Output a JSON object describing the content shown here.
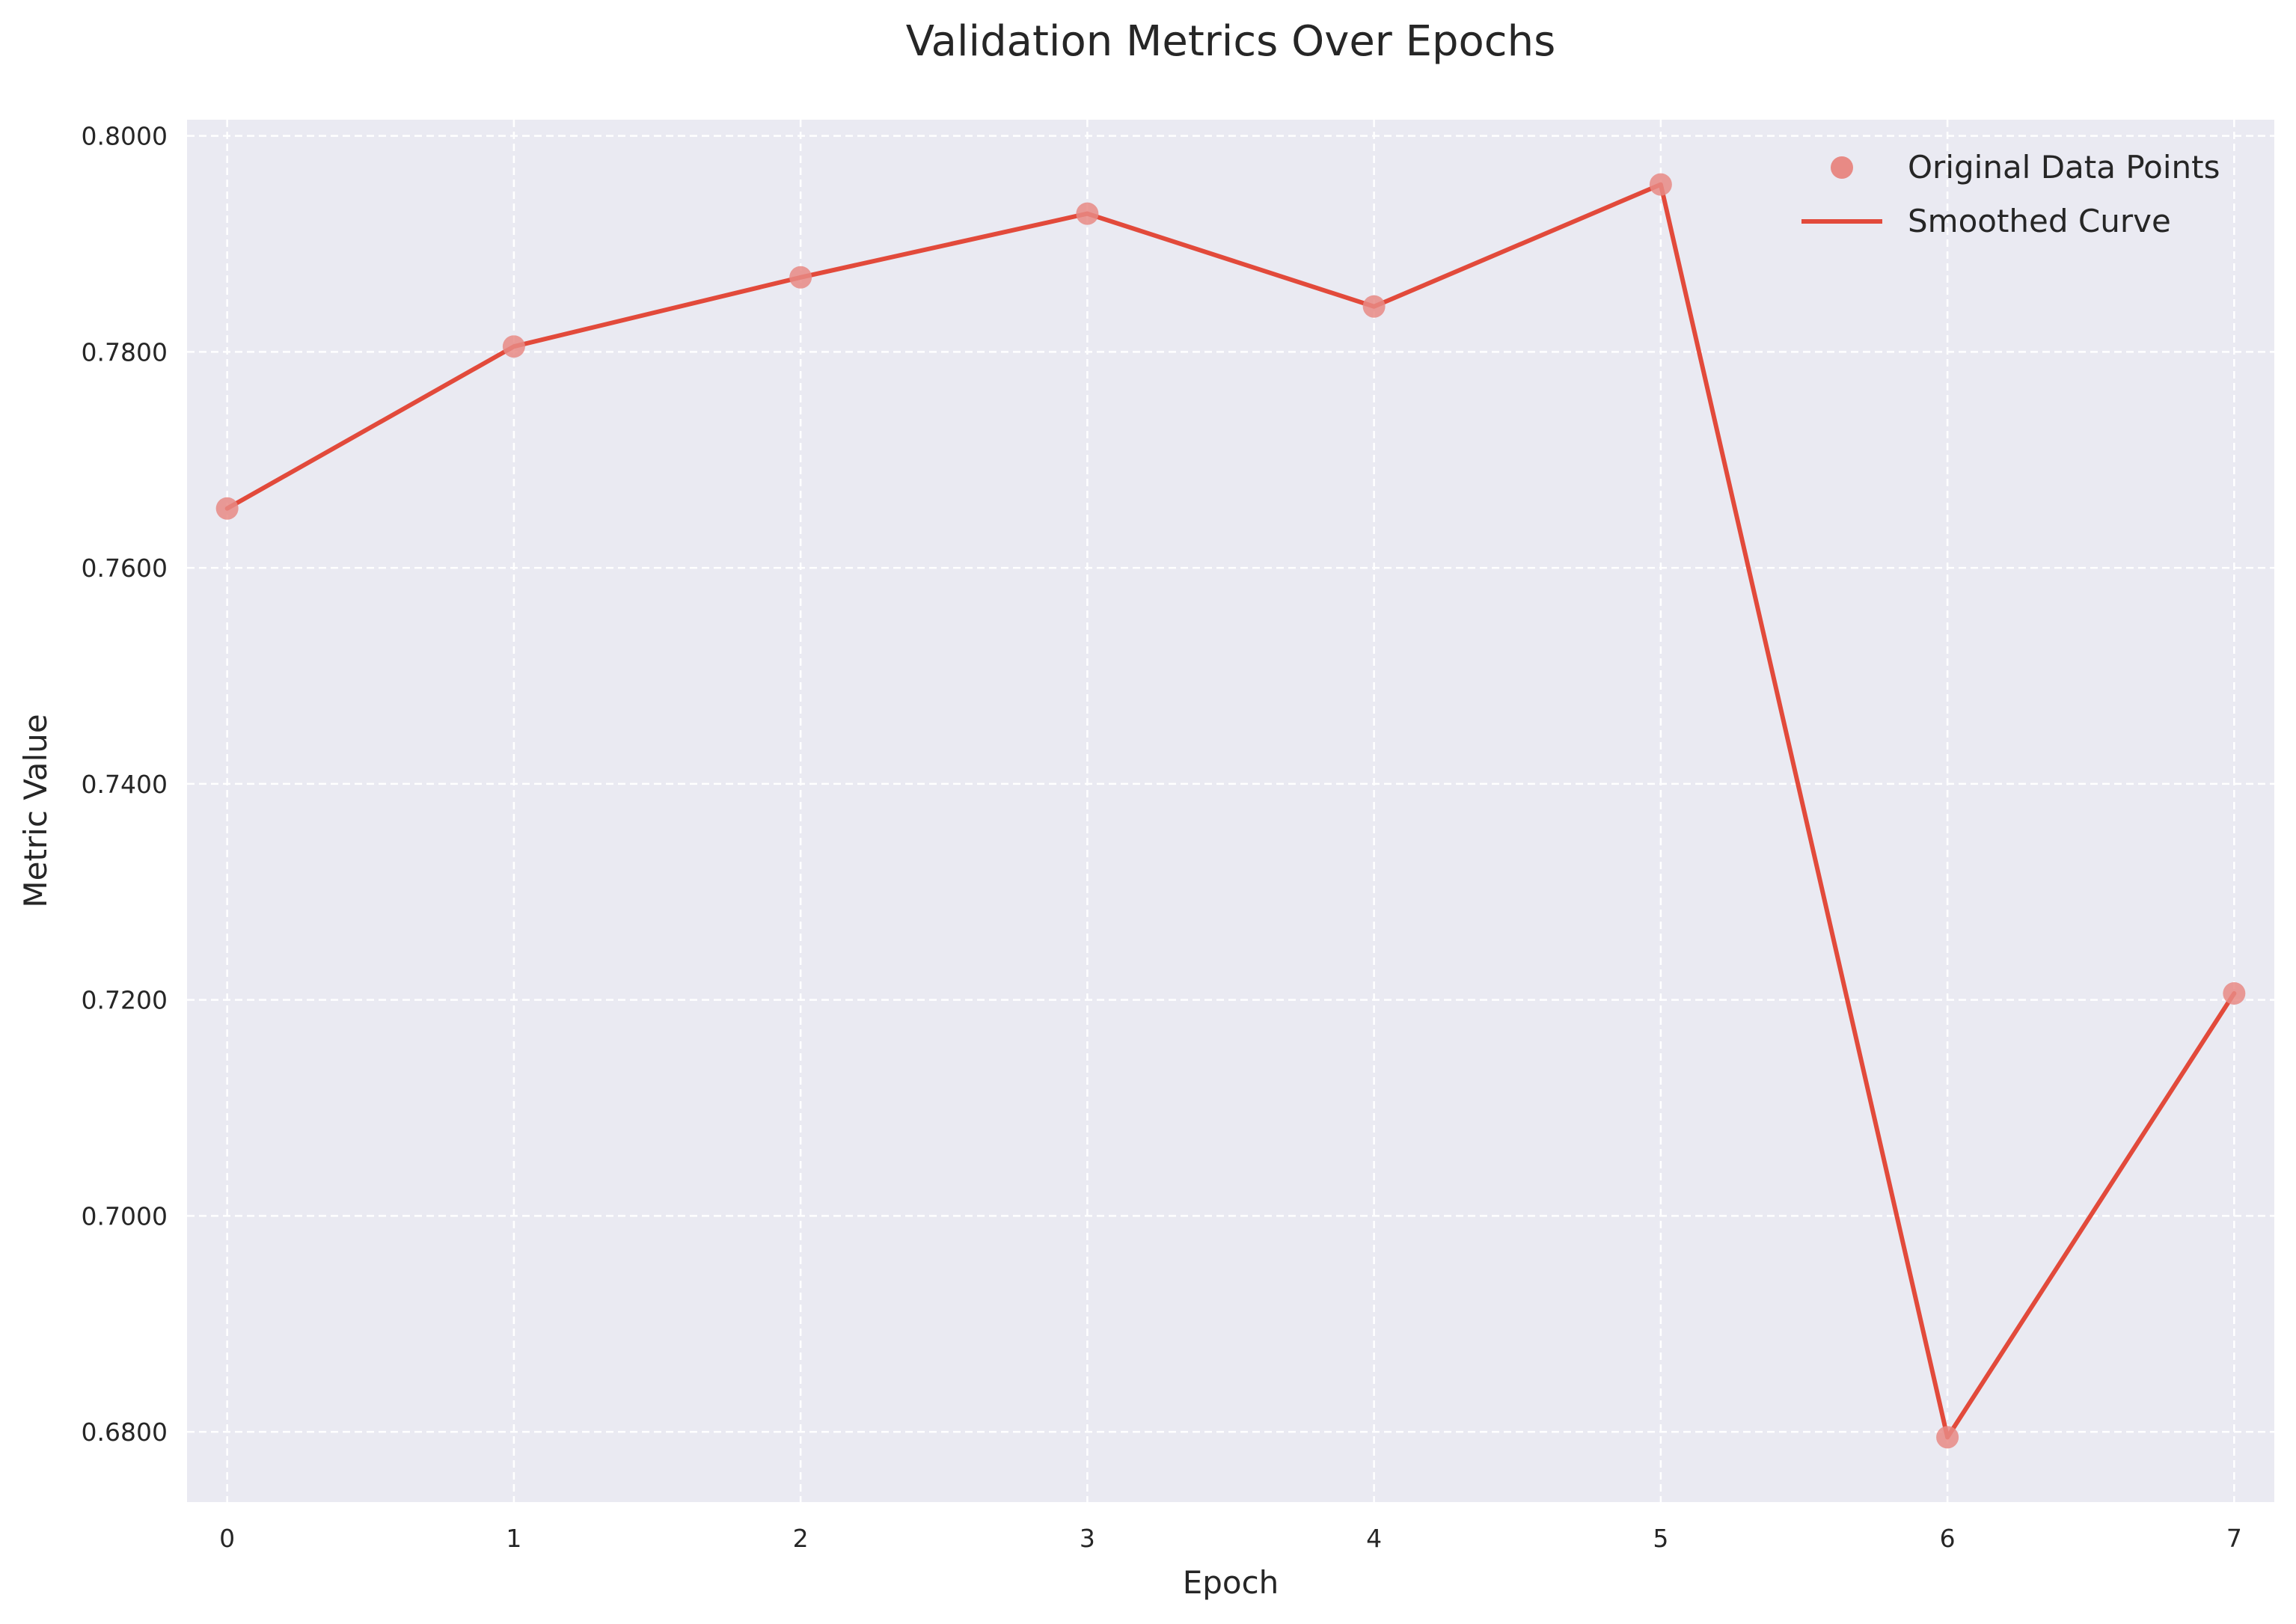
{
  "chart_data": {
    "type": "line",
    "title": "Validation Metrics Over Epochs",
    "xlabel": "Epoch",
    "ylabel": "Metric Value",
    "x": [
      0,
      1,
      2,
      3,
      4,
      5,
      6,
      7
    ],
    "series": [
      {
        "name": "Original Data Points",
        "kind": "scatter",
        "values": [
          0.7655,
          0.7805,
          0.7869,
          0.7928,
          0.7842,
          0.7955,
          0.6795,
          0.7206
        ],
        "color": "#e88a85"
      },
      {
        "name": "Smoothed Curve",
        "kind": "line",
        "values": [
          0.7655,
          0.7805,
          0.7869,
          0.7928,
          0.7842,
          0.7955,
          0.6795,
          0.7206
        ],
        "color": "#e24a3b"
      }
    ],
    "xlim": [
      -0.14,
      7.14
    ],
    "ylim": [
      0.6735,
      0.8015
    ],
    "xticks": [
      "0",
      "1",
      "2",
      "3",
      "4",
      "5",
      "6",
      "7"
    ],
    "yticks": [
      "0.6800",
      "0.7000",
      "0.7200",
      "0.7400",
      "0.7600",
      "0.7800",
      "0.8000"
    ],
    "grid": true,
    "legend_position": "top-right",
    "background_color": "#eaeaf2"
  }
}
